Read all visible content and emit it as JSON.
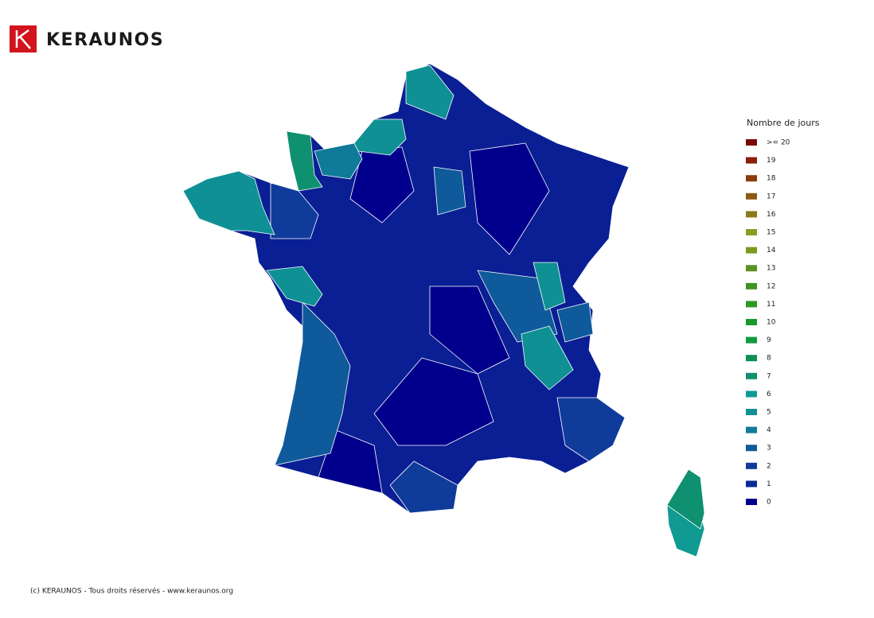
{
  "header": {
    "brand": "KERAUNOS"
  },
  "legend": {
    "title": "Nombre de jours",
    "items": [
      {
        "label": ">= 20",
        "color": "#7a0a0a"
      },
      {
        "label": 19,
        "color": "#8b1f0a"
      },
      {
        "label": 18,
        "color": "#8c3c0c"
      },
      {
        "label": 17,
        "color": "#8c5a14"
      },
      {
        "label": 16,
        "color": "#8c7a1a"
      },
      {
        "label": 15,
        "color": "#8f9a22"
      },
      {
        "label": 14,
        "color": "#7a9a20"
      },
      {
        "label": 13,
        "color": "#5c9222"
      },
      {
        "label": 12,
        "color": "#3f9222"
      },
      {
        "label": 11,
        "color": "#2a9a22"
      },
      {
        "label": 10,
        "color": "#179a2a"
      },
      {
        "label": 9,
        "color": "#0f9a3e"
      },
      {
        "label": 8,
        "color": "#0f9052"
      },
      {
        "label": 7,
        "color": "#0f9070"
      },
      {
        "label": 6,
        "color": "#0f9a92"
      },
      {
        "label": 5,
        "color": "#0f9094"
      },
      {
        "label": 4,
        "color": "#107a9a"
      },
      {
        "label": 3,
        "color": "#0f5a9a"
      },
      {
        "label": 2,
        "color": "#0f3c9a"
      },
      {
        "label": 1,
        "color": "#0a2a96"
      },
      {
        "label": 0,
        "color": "#00008c"
      }
    ]
  },
  "footer": {
    "text": "(c) KERAUNOS - Tous droits réservés - www.keraunos.org"
  }
}
